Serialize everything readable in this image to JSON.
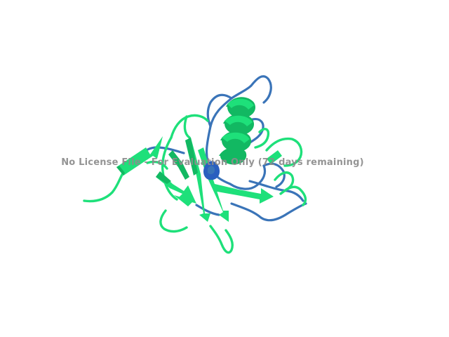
{
  "viewer": {
    "background": "#ffffff",
    "watermark_text": "No License File - For Evaluation Only (72 days remaining)"
  },
  "molecule": {
    "representation": "cartoon",
    "colors": {
      "primary_chain": "#1ee07a",
      "primary_chain_shade": "#12b862",
      "secondary_chain": "#3a74b8",
      "core": "#2a5fbf"
    }
  }
}
